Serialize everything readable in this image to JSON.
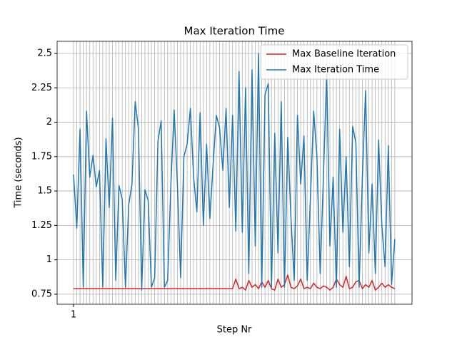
{
  "chart_data": {
    "type": "line",
    "title": "Max Iteration Time",
    "xlabel": "Step Nr",
    "ylabel": "Time (seconds)",
    "x": [
      1,
      2,
      3,
      4,
      5,
      6,
      7,
      8,
      9,
      10,
      11,
      12,
      13,
      14,
      15,
      16,
      17,
      18,
      19,
      20,
      21,
      22,
      23,
      24,
      25,
      26,
      27,
      28,
      29,
      30,
      31,
      32,
      33,
      34,
      35,
      36,
      37,
      38,
      39,
      40,
      41,
      42,
      43,
      44,
      45,
      46,
      47,
      48,
      49,
      50,
      51,
      52,
      53,
      54,
      55,
      56,
      57,
      58,
      59,
      60,
      61,
      62,
      63,
      64,
      65,
      66,
      67,
      68,
      69,
      70,
      71,
      72,
      73,
      74,
      75,
      76,
      77,
      78,
      79,
      80,
      81,
      82,
      83,
      84,
      85,
      86,
      87,
      88,
      89,
      90,
      91,
      92,
      93,
      94,
      95,
      96,
      97,
      98,
      99,
      100
    ],
    "series": [
      {
        "name": "Max Baseline Iteration",
        "color": "#d62728",
        "values": [
          0.79,
          0.79,
          0.79,
          0.79,
          0.79,
          0.79,
          0.79,
          0.79,
          0.79,
          0.79,
          0.79,
          0.79,
          0.79,
          0.79,
          0.79,
          0.79,
          0.79,
          0.79,
          0.79,
          0.79,
          0.79,
          0.79,
          0.79,
          0.79,
          0.79,
          0.79,
          0.79,
          0.79,
          0.79,
          0.79,
          0.79,
          0.79,
          0.79,
          0.79,
          0.79,
          0.79,
          0.79,
          0.79,
          0.79,
          0.79,
          0.79,
          0.79,
          0.79,
          0.79,
          0.79,
          0.79,
          0.79,
          0.79,
          0.79,
          0.79,
          0.86,
          0.79,
          0.8,
          0.78,
          0.85,
          0.8,
          0.82,
          0.79,
          0.84,
          0.8,
          0.85,
          0.79,
          0.78,
          0.86,
          0.8,
          0.82,
          0.89,
          0.8,
          0.79,
          0.81,
          0.86,
          0.79,
          0.8,
          0.79,
          0.83,
          0.8,
          0.79,
          0.81,
          0.8,
          0.78,
          0.8,
          0.86,
          0.82,
          0.8,
          0.88,
          0.79,
          0.8,
          0.84,
          0.85,
          0.79,
          0.82,
          0.8,
          0.85,
          0.78,
          0.8,
          0.83,
          0.8,
          0.82,
          0.8,
          0.79
        ]
      },
      {
        "name": "Max Iteration Time",
        "color": "#1f77b4",
        "values": [
          1.62,
          1.23,
          1.95,
          0.8,
          2.08,
          1.6,
          1.76,
          1.53,
          1.65,
          0.8,
          1.88,
          1.38,
          2.03,
          0.85,
          1.54,
          1.44,
          0.8,
          1.4,
          1.55,
          2.15,
          1.95,
          0.78,
          1.51,
          1.43,
          0.8,
          0.87,
          1.86,
          2.01,
          0.8,
          0.85,
          1.55,
          2.09,
          1.55,
          0.87,
          1.75,
          1.84,
          2.1,
          1.6,
          1.35,
          2.07,
          1.25,
          1.84,
          1.3,
          1.69,
          2.05,
          1.96,
          1.65,
          2.1,
          1.38,
          2.05,
          1.21,
          2.37,
          1.2,
          2.25,
          0.9,
          2.38,
          1.1,
          2.5,
          0.8,
          2.2,
          2.28,
          0.8,
          1.92,
          1.05,
          2.15,
          0.8,
          1.89,
          1.3,
          0.85,
          2.05,
          1.55,
          1.9,
          0.85,
          1.45,
          2.08,
          1.75,
          0.9,
          1.6,
          2.35,
          1.1,
          1.6,
          0.8,
          1.95,
          1.2,
          1.75,
          0.95,
          1.97,
          1.85,
          0.8,
          1.6,
          2.23,
          1.05,
          1.55,
          0.9,
          1.87,
          1.25,
          0.95,
          1.83,
          0.82,
          1.15
        ]
      }
    ],
    "xlim": [
      -4.06,
      105.3
    ],
    "xticks": [
      1
    ],
    "ylim": [
      0.677,
      2.588
    ],
    "yticks": [
      0.75,
      1.0,
      1.25,
      1.5,
      1.75,
      2.0,
      2.25,
      2.5
    ],
    "grid": true,
    "legend": "upper right"
  }
}
